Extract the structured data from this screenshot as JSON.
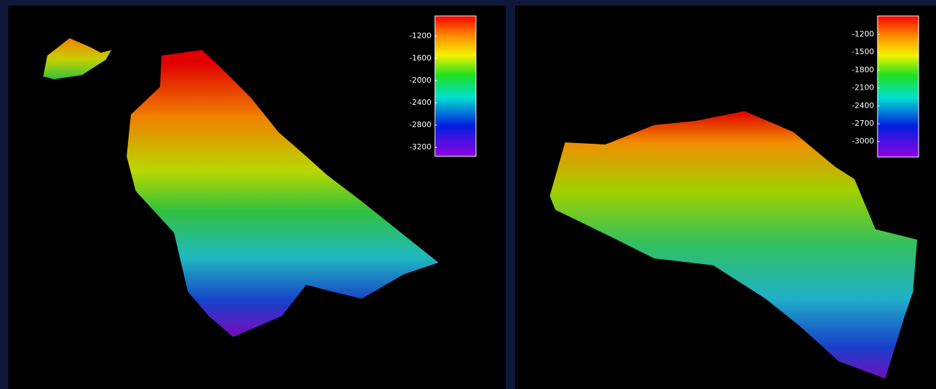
{
  "chart_data": [
    {
      "type": "surface",
      "clim": [
        -3362,
        -838
      ],
      "cticks": [
        -1200,
        -1600,
        -2000,
        -2400,
        -2800,
        -3200
      ]
    },
    {
      "type": "surface",
      "clim": [
        -3260,
        -890
      ],
      "cticks": [
        -1200,
        -1500,
        -1800,
        -2100,
        -2400,
        -2700,
        -3000
      ]
    }
  ]
}
